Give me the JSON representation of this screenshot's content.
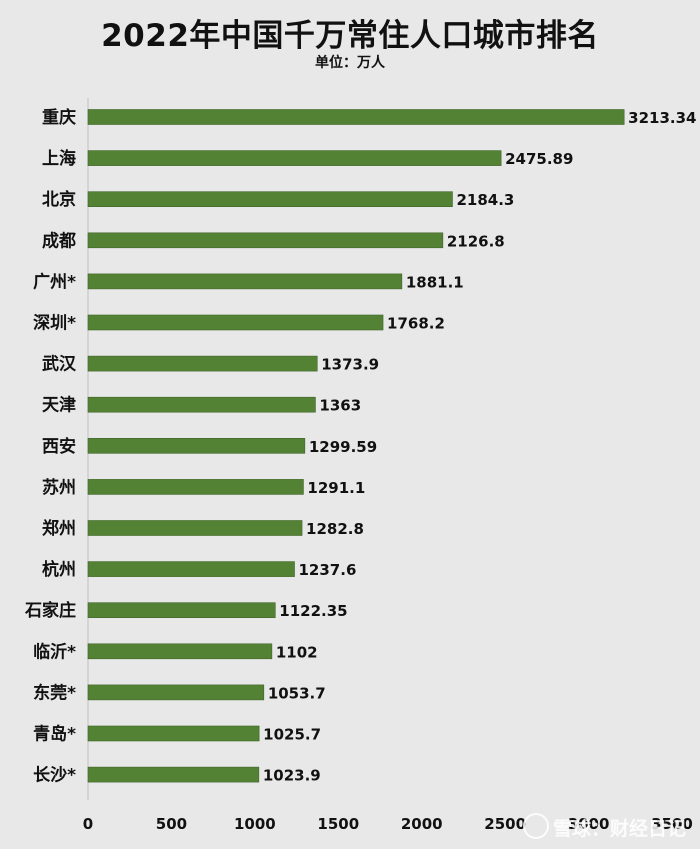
{
  "chart_data": {
    "type": "bar",
    "orientation": "horizontal",
    "title": "2022年中国千万常住人口城市排名",
    "subtitle": "单位：万人",
    "categories": [
      "重庆",
      "上海",
      "北京",
      "成都",
      "广州*",
      "深圳*",
      "武汉",
      "天津",
      "西安",
      "苏州",
      "郑州",
      "杭州",
      "石家庄",
      "临沂*",
      "东莞*",
      "青岛*",
      "长沙*"
    ],
    "values": [
      3213.34,
      2475.89,
      2184.3,
      2126.8,
      1881.1,
      1768.2,
      1373.9,
      1363,
      1299.59,
      1291.1,
      1282.8,
      1237.6,
      1122.35,
      1102,
      1053.7,
      1025.7,
      1023.9
    ],
    "value_labels": [
      "3213.34",
      "2475.89",
      "2184.3",
      "2126.8",
      "1881.1",
      "1768.2",
      "1373.9",
      "1363",
      "1299.59",
      "1291.1",
      "1282.8",
      "1237.6",
      "1122.35",
      "1102",
      "1053.7",
      "1025.7",
      "1023.9"
    ],
    "xlim": [
      0,
      3500
    ],
    "xticks": [
      0,
      500,
      1000,
      1500,
      2000,
      2500,
      3000,
      3500
    ],
    "grid": false,
    "bar_color": "#548235"
  },
  "watermark": "雪球：财经日记"
}
